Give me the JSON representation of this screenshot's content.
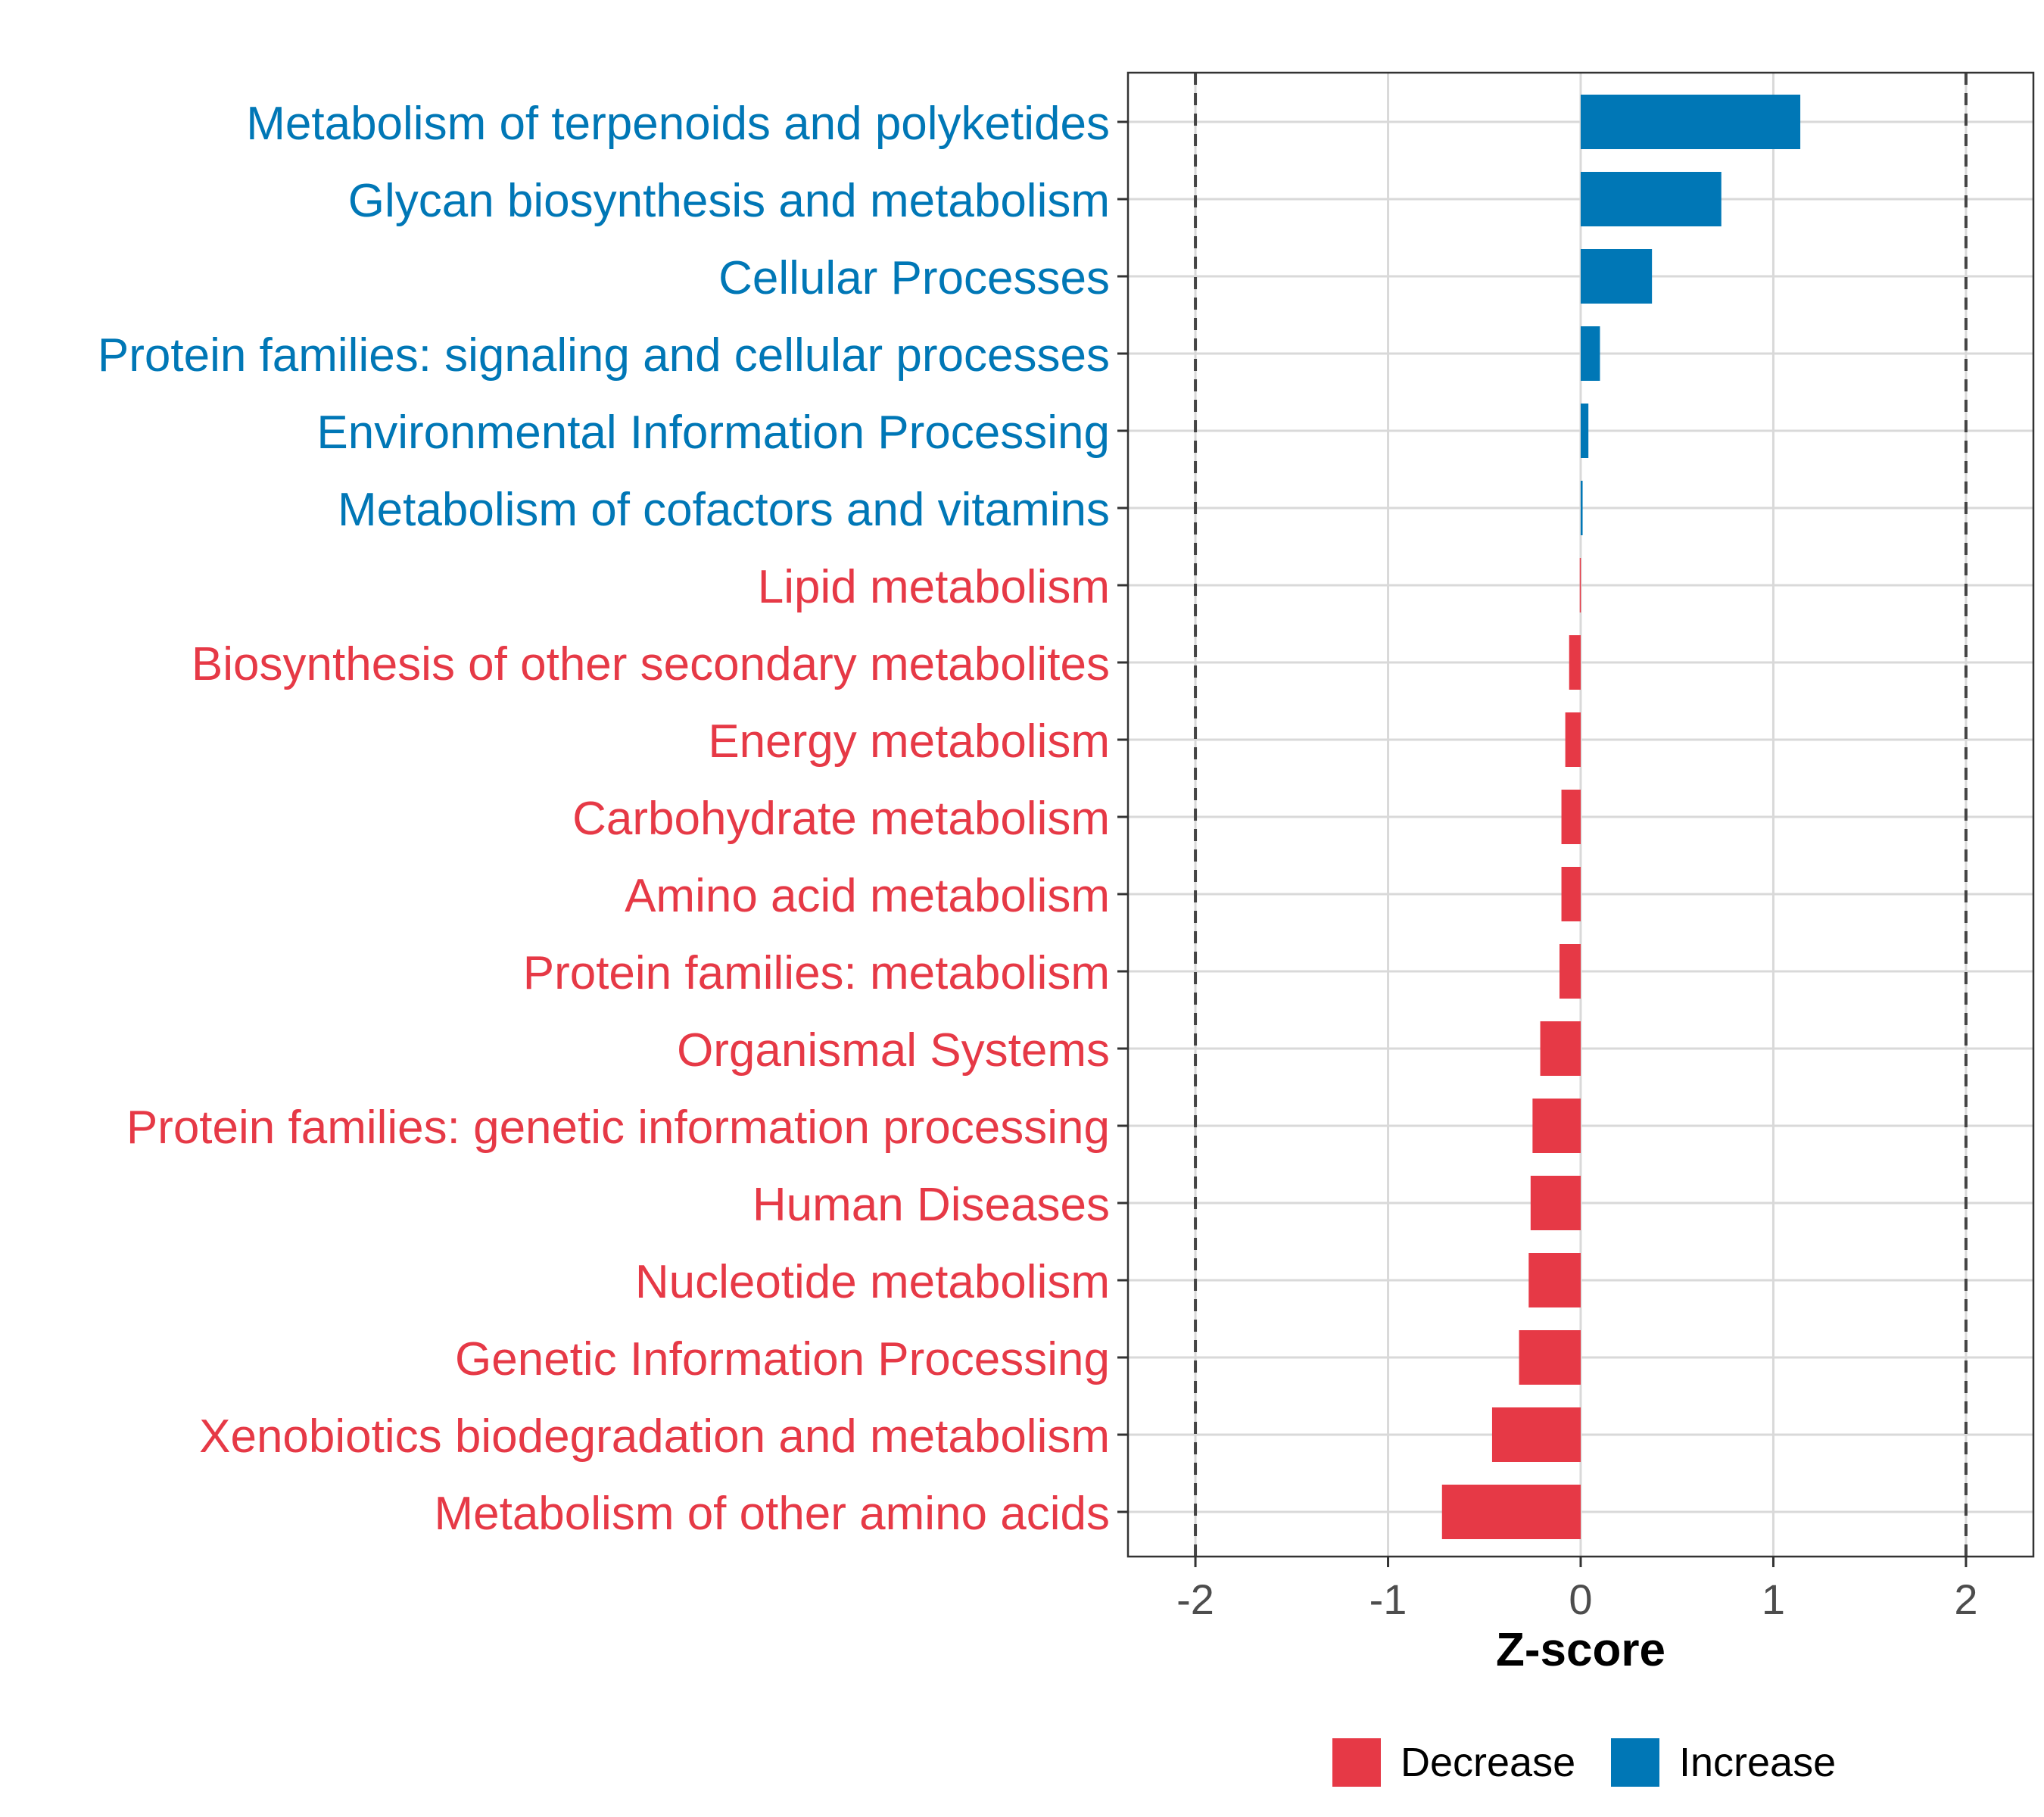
{
  "chart_data": {
    "type": "bar",
    "orientation": "horizontal",
    "categories": [
      "Metabolism of terpenoids and polyketides",
      "Glycan biosynthesis and metabolism",
      "Cellular Processes",
      "Protein families: signaling and cellular processes",
      "Environmental Information Processing",
      "Metabolism of cofactors and vitamins",
      "Lipid metabolism",
      "Biosynthesis of other secondary metabolites",
      "Energy metabolism",
      "Carbohydrate metabolism",
      "Amino acid metabolism",
      "Protein families: metabolism",
      "Organismal Systems",
      "Protein families: genetic information processing",
      "Human Diseases",
      "Nucleotide metabolism",
      "Genetic Information Processing",
      "Xenobiotics biodegradation and metabolism",
      "Metabolism of other amino acids"
    ],
    "values": [
      1.14,
      0.73,
      0.37,
      0.1,
      0.04,
      0.01,
      -0.005,
      -0.06,
      -0.08,
      -0.1,
      -0.1,
      -0.11,
      -0.21,
      -0.25,
      -0.26,
      -0.27,
      -0.32,
      -0.46,
      -0.72
    ],
    "groups": [
      "Increase",
      "Increase",
      "Increase",
      "Increase",
      "Increase",
      "Increase",
      "Decrease",
      "Decrease",
      "Decrease",
      "Decrease",
      "Decrease",
      "Decrease",
      "Decrease",
      "Decrease",
      "Decrease",
      "Decrease",
      "Decrease",
      "Decrease",
      "Decrease"
    ],
    "xlabel": "Z-score",
    "xlim": [
      -2.35,
      2.35
    ],
    "xticks": [
      -2,
      -1,
      0,
      1,
      2
    ],
    "xtick_labels": [
      "-2",
      "-1",
      "0",
      "1",
      "2"
    ],
    "reference_lines": [
      -2,
      2
    ],
    "grid": true,
    "legend": {
      "position": "bottom",
      "entries": [
        {
          "label": "Decrease",
          "color": "#E63946"
        },
        {
          "label": "Increase",
          "color": "#0077B6"
        }
      ]
    },
    "colors": {
      "Decrease": "#E63946",
      "Increase": "#0077B6"
    }
  }
}
